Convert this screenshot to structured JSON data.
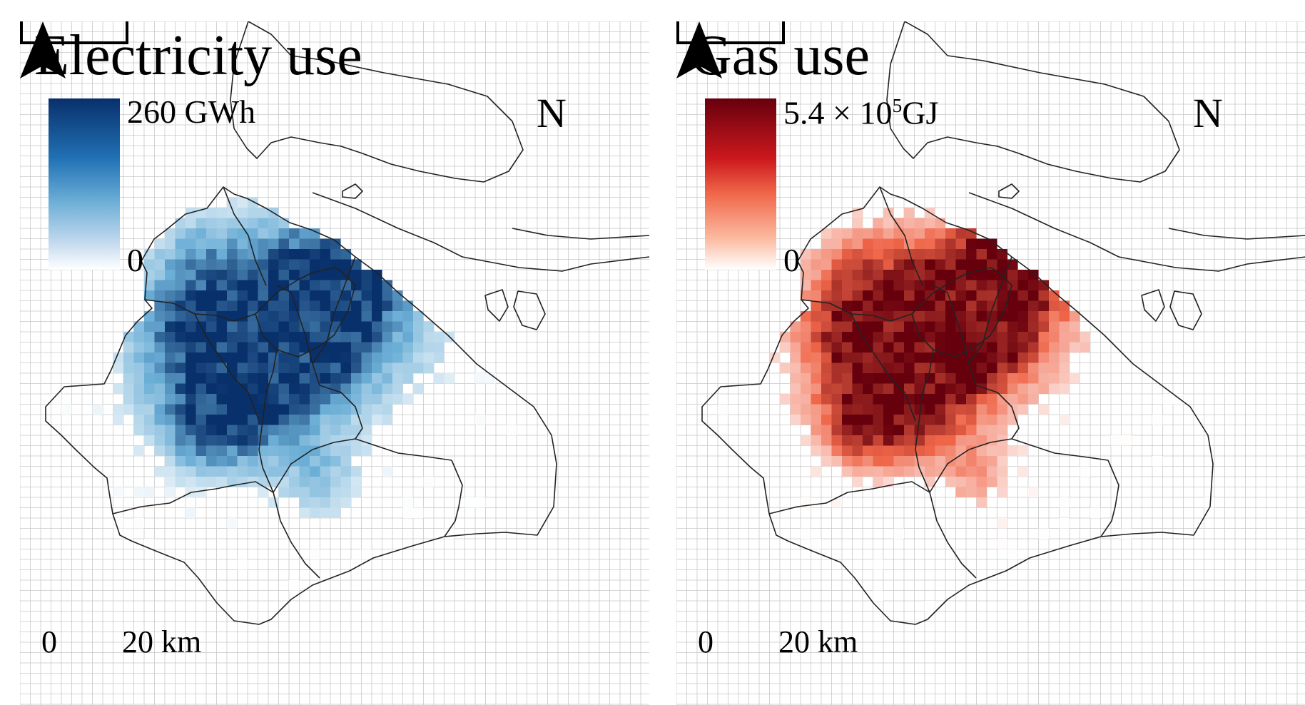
{
  "panels": [
    {
      "id": "elec",
      "title": "Electricity use",
      "legend": {
        "max_label": "260 GWh",
        "min_label": "0"
      },
      "colors": {
        "low": "#ffffff",
        "mid": "#6baed6",
        "high": "#08306b"
      },
      "north_label": "N",
      "scale": {
        "zero_label": "0",
        "end_label": "20 km"
      }
    },
    {
      "id": "gas",
      "title": "Gas use",
      "legend": {
        "max_base": "5.4 × 10",
        "max_exp": "5",
        "max_unit": "GJ",
        "min_label": "0"
      },
      "colors": {
        "low": "#ffffff",
        "mid": "#ef6548",
        "high": "#67000d"
      },
      "north_label": "N",
      "scale": {
        "zero_label": "0",
        "end_label": "20 km"
      }
    }
  ],
  "colors": {
    "grid_line": "#c8c8c8",
    "boundary": "#222222"
  }
}
